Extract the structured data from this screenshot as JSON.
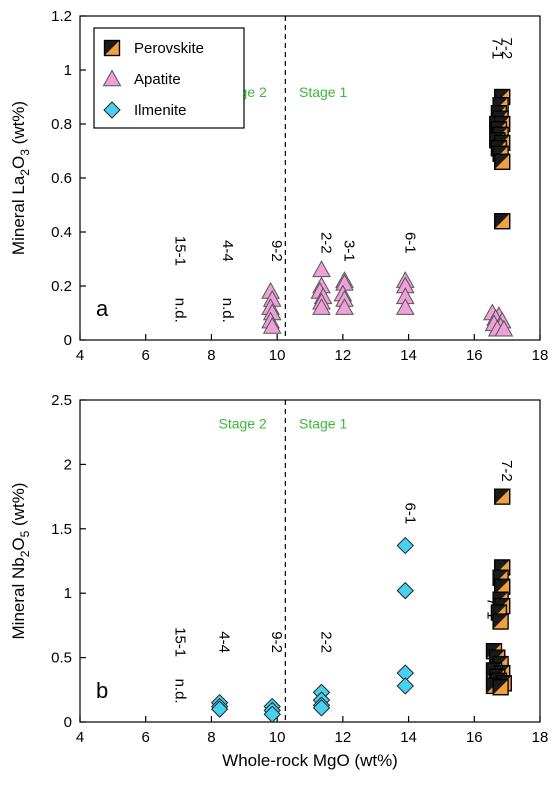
{
  "colors": {
    "perovskite_fill": "#F0A040",
    "perovskite_dark": "#1A1A1A",
    "apatite_fill": "#F0A0D8",
    "ilmenite_fill": "#48D0F0",
    "stage_text": "#3CB83C",
    "axis": "#000000"
  },
  "chart_data": [
    {
      "id": "a",
      "type": "scatter",
      "panel_label": "a",
      "xlabel": "",
      "ylabel": "Mineral La2O3 (wt%)",
      "ylabel_parts": [
        "Mineral La",
        "2",
        "O",
        "3",
        " (wt%)"
      ],
      "xlim": [
        4,
        18
      ],
      "ylim": [
        0,
        1.2
      ],
      "x_ticks": [
        "4",
        "6",
        "8",
        "10",
        "12",
        "14",
        "16",
        "18"
      ],
      "y_ticks": [
        "0",
        "0.2",
        "0.4",
        "0.6",
        "0.8",
        "1",
        "1.2"
      ],
      "stage_divider_x": 10.25,
      "stage_labels": [
        {
          "text": "Stage 2",
          "x": 8.95,
          "y": 0.9
        },
        {
          "text": "Stage 1",
          "x": 11.4,
          "y": 0.9
        }
      ],
      "legend": {
        "position": "top-left",
        "items": [
          {
            "label": "Perovskite",
            "marker": "square"
          },
          {
            "label": "Apatite",
            "marker": "triangle"
          },
          {
            "label": "Ilmenite",
            "marker": "diamond"
          }
        ]
      },
      "sample_labels": [
        {
          "text": "15-1",
          "x": 6.9,
          "y": 0.33
        },
        {
          "text": "4-4",
          "x": 8.35,
          "y": 0.33
        },
        {
          "text": "9-2",
          "x": 9.85,
          "y": 0.33
        },
        {
          "text": "2-2",
          "x": 11.35,
          "y": 0.36
        },
        {
          "text": "3-1",
          "x": 12.05,
          "y": 0.33
        },
        {
          "text": "6-1",
          "x": 13.9,
          "y": 0.36
        },
        {
          "text": "7-1",
          "x": 16.55,
          "y": 1.08
        },
        {
          "text": "7-2",
          "x": 16.85,
          "y": 1.08
        }
      ],
      "nd_labels": [
        {
          "text": "n.d.",
          "x": 6.9,
          "y": 0.11
        },
        {
          "text": "n.d.",
          "x": 8.35,
          "y": 0.11
        }
      ],
      "series": [
        {
          "name": "Perovskite",
          "marker": "square",
          "points": [
            [
              16.85,
              0.9
            ],
            [
              16.8,
              0.87
            ],
            [
              16.75,
              0.84
            ],
            [
              16.8,
              0.82
            ],
            [
              16.7,
              0.8
            ],
            [
              16.85,
              0.8
            ],
            [
              16.75,
              0.78
            ],
            [
              16.8,
              0.76
            ],
            [
              16.7,
              0.74
            ],
            [
              16.85,
              0.73
            ],
            [
              16.75,
              0.71
            ],
            [
              16.8,
              0.69
            ],
            [
              16.85,
              0.66
            ],
            [
              16.85,
              0.44
            ]
          ]
        },
        {
          "name": "Apatite",
          "marker": "triangle",
          "points": [
            [
              9.8,
              0.18
            ],
            [
              9.85,
              0.15
            ],
            [
              9.8,
              0.12
            ],
            [
              9.85,
              0.1
            ],
            [
              9.8,
              0.07
            ],
            [
              9.85,
              0.05
            ],
            [
              11.35,
              0.26
            ],
            [
              11.35,
              0.2
            ],
            [
              11.3,
              0.18
            ],
            [
              11.4,
              0.16
            ],
            [
              11.35,
              0.14
            ],
            [
              11.35,
              0.12
            ],
            [
              12.05,
              0.22
            ],
            [
              12.05,
              0.21
            ],
            [
              12.0,
              0.17
            ],
            [
              12.05,
              0.15
            ],
            [
              12.05,
              0.12
            ],
            [
              13.9,
              0.22
            ],
            [
              13.9,
              0.2
            ],
            [
              13.9,
              0.16
            ],
            [
              13.9,
              0.12
            ],
            [
              16.55,
              0.1
            ],
            [
              16.75,
              0.09
            ],
            [
              16.65,
              0.08
            ],
            [
              16.85,
              0.07
            ],
            [
              16.6,
              0.06
            ],
            [
              16.8,
              0.05
            ],
            [
              16.7,
              0.04
            ],
            [
              16.9,
              0.04
            ]
          ]
        }
      ]
    },
    {
      "id": "b",
      "type": "scatter",
      "panel_label": "b",
      "xlabel": "Whole-rock MgO (wt%)",
      "ylabel": "Mineral Nb2O5 (wt%)",
      "ylabel_parts": [
        "Mineral Nb",
        "2",
        "O",
        "5",
        " (wt%)"
      ],
      "xlim": [
        4,
        18
      ],
      "ylim": [
        0,
        2.5
      ],
      "x_ticks": [
        "4",
        "6",
        "8",
        "10",
        "12",
        "14",
        "16",
        "18"
      ],
      "y_ticks": [
        "0",
        "0.5",
        "1",
        "1.5",
        "2",
        "2.5"
      ],
      "stage_divider_x": 10.25,
      "stage_labels": [
        {
          "text": "Stage 2",
          "x": 8.95,
          "y": 2.28
        },
        {
          "text": "Stage 1",
          "x": 11.4,
          "y": 2.28
        }
      ],
      "sample_labels": [
        {
          "text": "15-1",
          "x": 6.9,
          "y": 0.62
        },
        {
          "text": "4-4",
          "x": 8.25,
          "y": 0.62
        },
        {
          "text": "9-2",
          "x": 9.85,
          "y": 0.62
        },
        {
          "text": "2-2",
          "x": 11.35,
          "y": 0.62
        },
        {
          "text": "6-1",
          "x": 13.9,
          "y": 1.62
        },
        {
          "text": "7-2",
          "x": 16.85,
          "y": 1.95
        },
        {
          "text": "7-1",
          "x": 16.4,
          "y": 0.88
        }
      ],
      "nd_labels": [
        {
          "text": "n.d.",
          "x": 6.9,
          "y": 0.24
        }
      ],
      "series": [
        {
          "name": "Perovskite",
          "marker": "square",
          "points": [
            [
              16.85,
              1.75
            ],
            [
              16.85,
              1.2
            ],
            [
              16.8,
              1.12
            ],
            [
              16.85,
              1.05
            ],
            [
              16.8,
              0.95
            ],
            [
              16.85,
              0.9
            ],
            [
              16.75,
              0.85
            ],
            [
              16.8,
              0.78
            ],
            [
              16.6,
              0.55
            ],
            [
              16.7,
              0.5
            ],
            [
              16.8,
              0.45
            ],
            [
              16.6,
              0.4
            ],
            [
              16.85,
              0.38
            ],
            [
              16.7,
              0.35
            ],
            [
              16.75,
              0.32
            ],
            [
              16.9,
              0.3
            ],
            [
              16.6,
              0.28
            ],
            [
              16.8,
              0.27
            ]
          ]
        },
        {
          "name": "Ilmenite",
          "marker": "diamond",
          "points": [
            [
              8.25,
              0.15
            ],
            [
              8.25,
              0.12
            ],
            [
              8.25,
              0.1
            ],
            [
              9.85,
              0.12
            ],
            [
              9.85,
              0.09
            ],
            [
              9.85,
              0.06
            ],
            [
              11.35,
              0.23
            ],
            [
              11.35,
              0.17
            ],
            [
              11.35,
              0.13
            ],
            [
              11.35,
              0.11
            ],
            [
              13.9,
              1.37
            ],
            [
              13.9,
              1.02
            ],
            [
              13.9,
              0.38
            ],
            [
              13.9,
              0.28
            ]
          ]
        }
      ]
    }
  ]
}
